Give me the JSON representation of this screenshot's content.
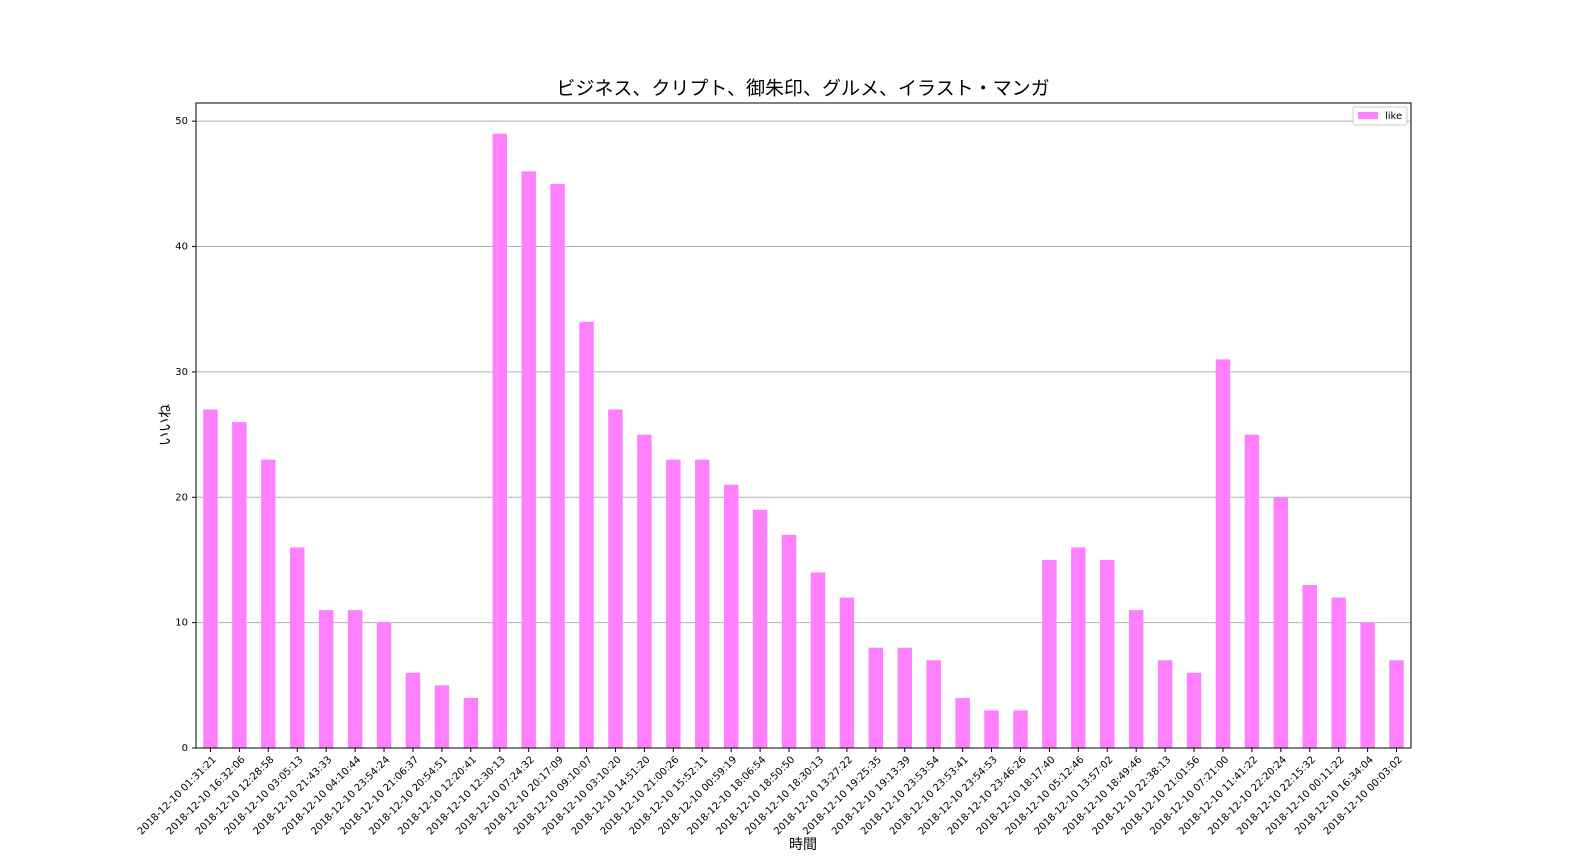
{
  "chart_data": {
    "type": "bar",
    "title": "ビジネス、クリプト、御朱印、グルメ、イラスト・マンガ",
    "x_label": "時間",
    "y_label": "いいね",
    "categories": [
      "2018-12-10 01:31:21",
      "2018-12-10 16:32:06",
      "2018-12-10 12:28:58",
      "2018-12-10 03:05:13",
      "2018-12-10 21:43:33",
      "2018-12-10 04:10:44",
      "2018-12-10 23:54:24",
      "2018-12-10 21:06:37",
      "2018-12-10 20:54:51",
      "2018-12-10 12:20:41",
      "2018-12-10 12:30:13",
      "2018-12-10 07:24:32",
      "2018-12-10 20:17:09",
      "2018-12-10 09:10:07",
      "2018-12-10 03:10:20",
      "2018-12-10 14:51:20",
      "2018-12-10 21:00:26",
      "2018-12-10 15:52:11",
      "2018-12-10 00:59:19",
      "2018-12-10 18:06:54",
      "2018-12-10 18:50:50",
      "2018-12-10 18:30:13",
      "2018-12-10 13:27:22",
      "2018-12-10 19:25:35",
      "2018-12-10 19:13:39",
      "2018-12-10 23:53:54",
      "2018-12-10 23:53:41",
      "2018-12-10 23:54:53",
      "2018-12-10 23:46:26",
      "2018-12-10 18:17:40",
      "2018-12-10 05:12:46",
      "2018-12-10 13:57:02",
      "2018-12-10 18:49:46",
      "2018-12-10 22:38:13",
      "2018-12-10 21:01:56",
      "2018-12-10 07:21:00",
      "2018-12-10 11:41:22",
      "2018-12-10 22:20:24",
      "2018-12-10 22:15:32",
      "2018-12-10 00:11:22",
      "2018-12-10 16:34:04",
      "2018-12-10 00:03:02"
    ],
    "series": [
      {
        "name": "like",
        "color": "#ff80ff",
        "values": [
          27,
          26,
          23,
          16,
          11,
          11,
          10,
          6,
          5,
          4,
          49,
          46,
          45,
          34,
          27,
          25,
          23,
          23,
          21,
          19,
          17,
          14,
          12,
          8,
          8,
          7,
          4,
          3,
          3,
          15,
          16,
          15,
          11,
          7,
          6,
          31,
          25,
          20,
          13,
          12,
          10,
          7
        ]
      }
    ],
    "ylim": [
      0,
      51.45
    ],
    "yticks": [
      0,
      10,
      20,
      30,
      40,
      50
    ],
    "grid": true,
    "legend": "upper right"
  }
}
